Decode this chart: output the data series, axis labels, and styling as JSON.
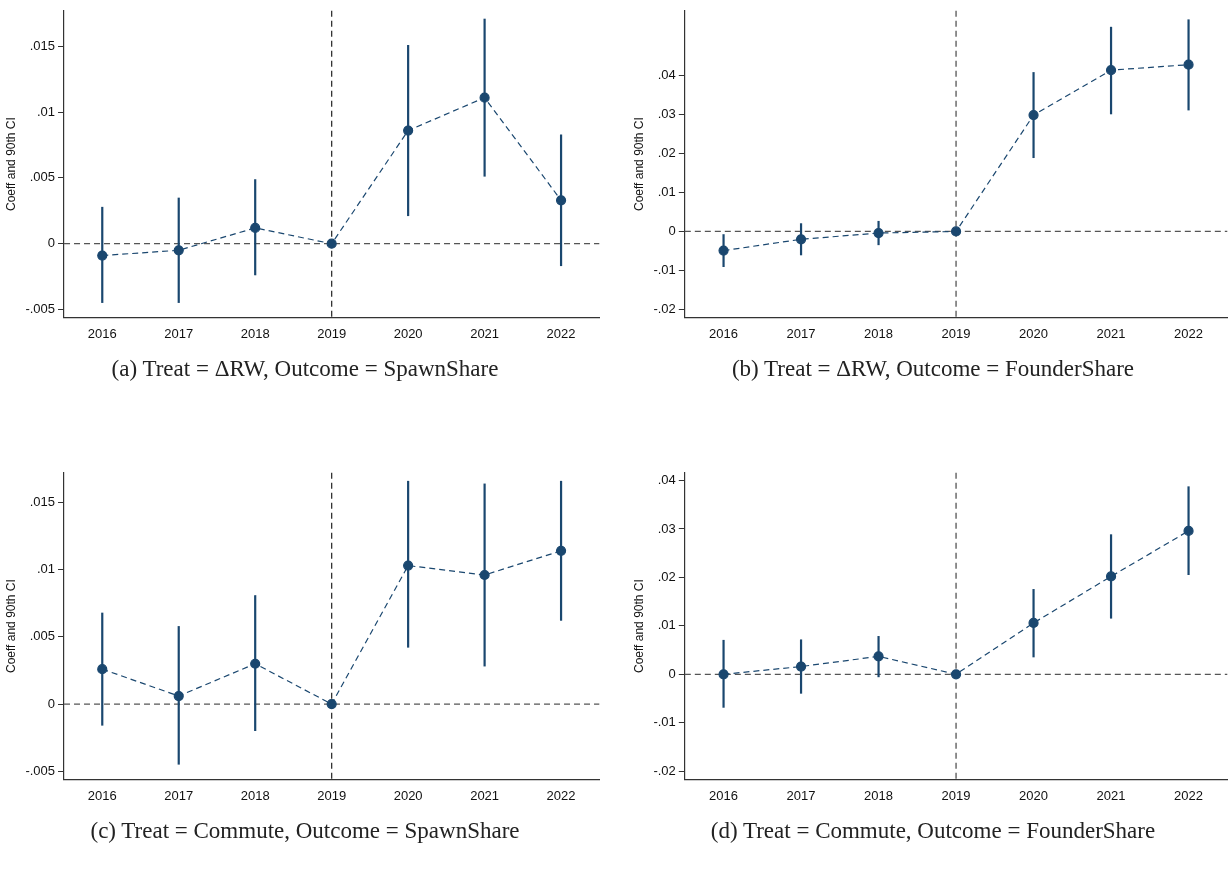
{
  "chart_data": [
    {
      "type": "line",
      "title": "(a) Treat = ΔRW, Outcome = SpawnShare",
      "ylabel": "Coeff and 90th CI",
      "x": [
        2016,
        2017,
        2018,
        2019,
        2020,
        2021,
        2022
      ],
      "xlim": [
        2015.5,
        2022.5
      ],
      "xticks": [
        2016,
        2017,
        2018,
        2019,
        2020,
        2021,
        2022
      ],
      "ylim": [
        -0.0056,
        0.0177
      ],
      "yticks": [
        {
          "value": -0.005,
          "label": "-.005"
        },
        {
          "value": 0,
          "label": "0"
        },
        {
          "value": 0.005,
          "label": ".005"
        },
        {
          "value": 0.01,
          "label": ".01"
        },
        {
          "value": 0.015,
          "label": ".015"
        }
      ],
      "marker": "circle",
      "line_style": "dashed",
      "ref_lines": [
        {
          "axis": "x",
          "value": 2019,
          "line_style": "dashed",
          "color": "#333333"
        },
        {
          "axis": "y",
          "value": 0,
          "line_style": "dashed",
          "color": "#555555"
        }
      ],
      "series": [
        {
          "color": "#1a476f",
          "values": [
            -0.0009,
            -0.0005,
            0.0012,
            0,
            0.0086,
            0.0111,
            0.0033
          ],
          "errors": [
            [
              -0.0045,
              0.0028
            ],
            [
              -0.0045,
              0.0035
            ],
            [
              -0.0024,
              0.0049
            ],
            null,
            [
              0.0021,
              0.0151
            ],
            [
              0.0051,
              0.0171
            ],
            [
              -0.0017,
              0.0083
            ]
          ]
        }
      ]
    },
    {
      "type": "line",
      "title": "(b) Treat = ΔRW, Outcome = FounderShare",
      "ylabel": "Coeff and 90th CI",
      "x": [
        2016,
        2017,
        2018,
        2019,
        2020,
        2021,
        2022
      ],
      "xlim": [
        2015.5,
        2022.5
      ],
      "xticks": [
        2016,
        2017,
        2018,
        2019,
        2020,
        2021,
        2022
      ],
      "ylim": [
        -0.022,
        0.0565
      ],
      "yticks": [
        {
          "value": -0.02,
          "label": "-.02"
        },
        {
          "value": -0.01,
          "label": "-.01"
        },
        {
          "value": 0,
          "label": "0"
        },
        {
          "value": 0.01,
          "label": ".01"
        },
        {
          "value": 0.02,
          "label": ".02"
        },
        {
          "value": 0.03,
          "label": ".03"
        },
        {
          "value": 0.04,
          "label": ".04"
        }
      ],
      "marker": "circle",
      "line_style": "dashed",
      "ref_lines": [
        {
          "axis": "x",
          "value": 2019,
          "line_style": "dashed",
          "color": "#555555"
        },
        {
          "axis": "y",
          "value": 0,
          "line_style": "dashed",
          "color": "#555555"
        }
      ],
      "series": [
        {
          "color": "#1a476f",
          "values": [
            -0.0049,
            -0.002,
            -0.0004,
            0,
            0.0298,
            0.0413,
            0.0427
          ],
          "errors": [
            [
              -0.0091,
              -0.0007
            ],
            [
              -0.0061,
              0.0021
            ],
            [
              -0.0035,
              0.0027
            ],
            null,
            [
              0.0188,
              0.0408
            ],
            [
              0.03,
              0.0524
            ],
            [
              0.031,
              0.0543
            ]
          ]
        }
      ]
    },
    {
      "type": "line",
      "title": "(c) Treat = Commute, Outcome = SpawnShare",
      "ylabel": "Coeff and 90th CI",
      "x": [
        2016,
        2017,
        2018,
        2019,
        2020,
        2021,
        2022
      ],
      "xlim": [
        2015.5,
        2022.5
      ],
      "xticks": [
        2016,
        2017,
        2018,
        2019,
        2020,
        2021,
        2022
      ],
      "ylim": [
        -0.0056,
        0.0172
      ],
      "yticks": [
        {
          "value": -0.005,
          "label": "-.005"
        },
        {
          "value": 0,
          "label": "0"
        },
        {
          "value": 0.005,
          "label": ".005"
        },
        {
          "value": 0.01,
          "label": ".01"
        },
        {
          "value": 0.015,
          "label": ".015"
        }
      ],
      "marker": "circle",
      "line_style": "dashed",
      "ref_lines": [
        {
          "axis": "x",
          "value": 2019,
          "line_style": "dashed",
          "color": "#333333"
        },
        {
          "axis": "y",
          "value": 0,
          "line_style": "dashed",
          "color": "#555555"
        }
      ],
      "series": [
        {
          "color": "#1a476f",
          "values": [
            0.0026,
            0.0006,
            0.003,
            0,
            0.0103,
            0.0096,
            0.0114
          ],
          "errors": [
            [
              -0.0016,
              0.0068
            ],
            [
              -0.0045,
              0.0058
            ],
            [
              -0.002,
              0.0081
            ],
            null,
            [
              0.0042,
              0.0166
            ],
            [
              0.0028,
              0.0164
            ],
            [
              0.0062,
              0.0166
            ]
          ]
        }
      ]
    },
    {
      "type": "line",
      "title": "(d) Treat = Commute, Outcome = FounderShare",
      "ylabel": "Coeff and 90th CI",
      "x": [
        2016,
        2017,
        2018,
        2019,
        2020,
        2021,
        2022
      ],
      "xlim": [
        2015.5,
        2022.5
      ],
      "xticks": [
        2016,
        2017,
        2018,
        2019,
        2020,
        2021,
        2022
      ],
      "ylim": [
        -0.0217,
        0.0416
      ],
      "yticks": [
        {
          "value": -0.02,
          "label": "-.02"
        },
        {
          "value": -0.01,
          "label": "-.01"
        },
        {
          "value": 0,
          "label": "0"
        },
        {
          "value": 0.01,
          "label": ".01"
        },
        {
          "value": 0.02,
          "label": ".02"
        },
        {
          "value": 0.03,
          "label": ".03"
        },
        {
          "value": 0.04,
          "label": ".04"
        }
      ],
      "marker": "circle",
      "line_style": "dashed",
      "ref_lines": [
        {
          "axis": "x",
          "value": 2019,
          "line_style": "dashed",
          "color": "#555555"
        },
        {
          "axis": "y",
          "value": 0,
          "line_style": "dashed",
          "color": "#555555"
        }
      ],
      "series": [
        {
          "color": "#1a476f",
          "values": [
            0,
            0.0016,
            0.0037,
            0,
            0.0106,
            0.0202,
            0.0296
          ],
          "errors": [
            [
              -0.0069,
              0.0071
            ],
            [
              -0.004,
              0.0072
            ],
            [
              -0.0006,
              0.0079
            ],
            null,
            [
              0.0035,
              0.0176
            ],
            [
              0.0115,
              0.0289
            ],
            [
              0.0205,
              0.0388
            ]
          ]
        }
      ]
    }
  ]
}
